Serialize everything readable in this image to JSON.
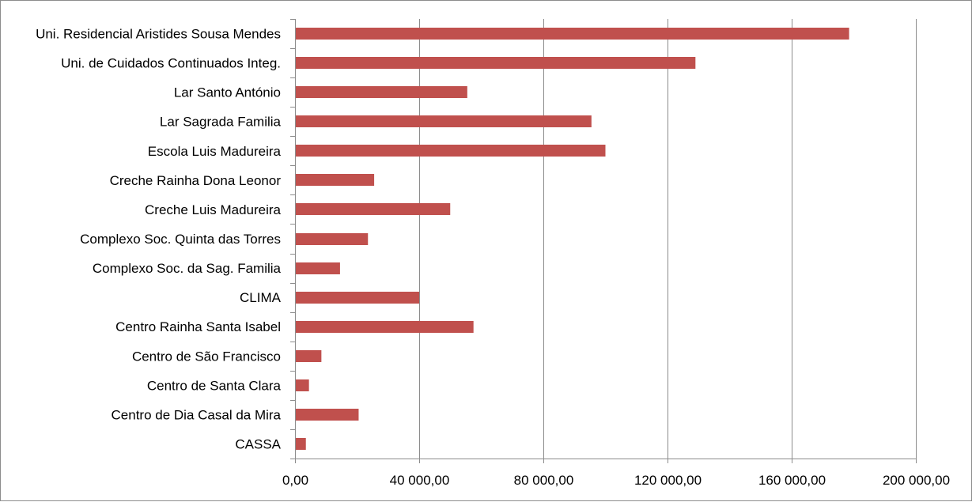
{
  "colors": {
    "bar": "#c0504d",
    "gridline": "#8c8c8c",
    "axis": "#8c8c8c",
    "frame": "#8c8c8c"
  },
  "chart_data": {
    "type": "bar",
    "orientation": "horizontal",
    "title": "",
    "xlabel": "",
    "ylabel": "",
    "grid": true,
    "legend": "none",
    "xlim": [
      0,
      200000
    ],
    "x_ticks": [
      0,
      40000,
      80000,
      120000,
      160000,
      200000
    ],
    "x_tick_labels": [
      "0,00",
      "40 000,00",
      "80 000,00",
      "120 000,00",
      "160 000,00",
      "200 000,00"
    ],
    "categories": [
      "Uni. Residencial Aristides Sousa Mendes",
      "Uni. de Cuidados Continuados Integ.",
      "Lar Santo António",
      "Lar Sagrada Familia",
      "Escola Luis Madureira",
      "Creche Rainha Dona Leonor",
      "Creche Luis Madureira",
      "Complexo Soc. Quinta das Torres",
      "Complexo Soc. da Sag. Familia",
      "CLIMA",
      "Centro Rainha Santa Isabel",
      "Centro de São Francisco",
      "Centro de Santa Clara",
      "Centro de Dia Casal da Mira",
      "CASSA"
    ],
    "values": [
      178500,
      129000,
      55500,
      95500,
      100000,
      25500,
      50000,
      23500,
      14500,
      40000,
      57500,
      8500,
      4500,
      20500,
      3500
    ]
  }
}
